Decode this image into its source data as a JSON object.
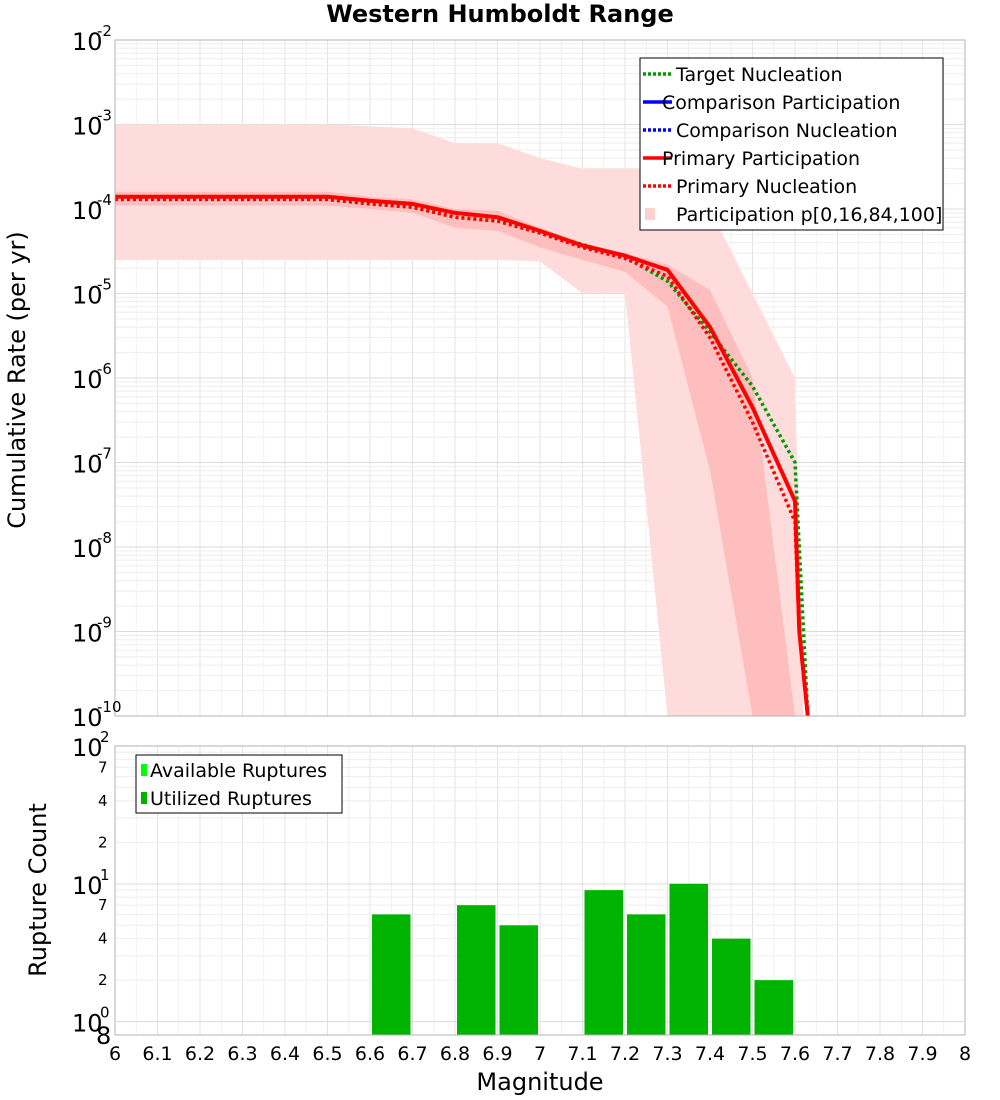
{
  "chart_data": [
    {
      "type": "line",
      "title": "Western Humboldt Range",
      "xlabel": "",
      "ylabel": "Cumulative Rate (per yr)",
      "xlim": [
        6,
        8
      ],
      "ylim": [
        1e-10,
        0.01
      ],
      "yscale": "log",
      "grid": true,
      "legend_position": "top-right",
      "y_ticks": [
        {
          "base": "10",
          "exp": "-2",
          "value": 0.01
        },
        {
          "base": "10",
          "exp": "-3",
          "value": 0.001
        },
        {
          "base": "10",
          "exp": "-4",
          "value": 0.0001
        },
        {
          "base": "10",
          "exp": "-5",
          "value": 1e-05
        },
        {
          "base": "10",
          "exp": "-6",
          "value": 1e-06
        },
        {
          "base": "10",
          "exp": "-7",
          "value": 1e-07
        },
        {
          "base": "10",
          "exp": "-8",
          "value": 1e-08
        },
        {
          "base": "10",
          "exp": "-9",
          "value": 1e-09
        },
        {
          "base": "10",
          "exp": "-10",
          "value": 1e-10
        }
      ],
      "bands": [
        {
          "name": "Participation p[0,16,84,100]",
          "kind": "outer",
          "color": "#ffdcdc",
          "x": [
            6.0,
            6.1,
            6.2,
            6.3,
            6.4,
            6.5,
            6.6,
            6.7,
            6.8,
            6.9,
            7.0,
            7.1,
            7.2,
            7.3,
            7.4,
            7.5,
            7.6,
            7.62
          ],
          "lower": [
            2.5e-05,
            2.5e-05,
            2.5e-05,
            2.5e-05,
            2.5e-05,
            2.5e-05,
            2.5e-05,
            2.5e-05,
            2.5e-05,
            2.5e-05,
            2.4e-05,
            1e-05,
            1e-05,
            1e-10,
            1e-10,
            1e-10,
            1e-10,
            1e-10
          ],
          "upper": [
            0.001,
            0.001,
            0.001,
            0.001,
            0.001,
            0.001,
            0.00095,
            0.0009,
            0.0006,
            0.0006,
            0.0004,
            0.0003,
            0.0003,
            0.0003,
            0.0001,
            1e-05,
            1e-06,
            1e-10
          ]
        },
        {
          "name": "Participation p[0,16,84,100]",
          "kind": "inner",
          "color": "#ffbebe",
          "x": [
            6.0,
            6.1,
            6.2,
            6.3,
            6.4,
            6.5,
            6.6,
            6.7,
            6.8,
            6.9,
            7.0,
            7.1,
            7.2,
            7.3,
            7.4,
            7.5,
            7.6
          ],
          "lower": [
            0.00011,
            0.00011,
            0.00011,
            0.00011,
            0.00011,
            0.00011,
            0.0001,
            9e-05,
            6e-05,
            5.5e-05,
            3.5e-05,
            2.5e-05,
            1.8e-05,
            7e-06,
            8e-08,
            1e-10,
            1e-10
          ],
          "upper": [
            0.00016,
            0.00016,
            0.00016,
            0.00016,
            0.00016,
            0.00016,
            0.00014,
            0.00013,
            0.0001,
            9.5e-05,
            6e-05,
            4e-05,
            3e-05,
            2.2e-05,
            1.1e-05,
            1e-06,
            1e-10
          ]
        }
      ],
      "series": [
        {
          "name": "Target Nucleation",
          "color": "#009900",
          "dash": "dotted",
          "x": [
            6.0,
            6.1,
            6.2,
            6.3,
            6.4,
            6.5,
            6.6,
            6.7,
            6.8,
            6.9,
            7.0,
            7.1,
            7.2,
            7.3,
            7.4,
            7.5,
            7.6,
            7.62,
            7.63
          ],
          "y": [
            0.00013,
            0.00013,
            0.00013,
            0.00013,
            0.00013,
            0.00013,
            0.000115,
            0.000105,
            8e-05,
            7.2e-05,
            5.2e-05,
            3.8e-05,
            2.7e-05,
            1.4e-05,
            3.5e-06,
            8e-07,
            1e-07,
            1e-09,
            1e-10
          ]
        },
        {
          "name": "Comparison Participation",
          "color": "#0000ff",
          "dash": "solid",
          "x": [],
          "y": []
        },
        {
          "name": "Comparison Nucleation",
          "color": "#0000ff",
          "dash": "dotted",
          "x": [],
          "y": []
        },
        {
          "name": "Primary Participation",
          "color": "#ff0000",
          "dash": "solid",
          "x": [
            6.0,
            6.1,
            6.2,
            6.3,
            6.4,
            6.5,
            6.6,
            6.7,
            6.8,
            6.9,
            7.0,
            7.1,
            7.2,
            7.3,
            7.4,
            7.5,
            7.6,
            7.61,
            7.63
          ],
          "y": [
            0.00014,
            0.00014,
            0.00014,
            0.00014,
            0.00014,
            0.00014,
            0.000125,
            0.000115,
            9e-05,
            8e-05,
            5.5e-05,
            3.7e-05,
            2.8e-05,
            1.9e-05,
            4e-06,
            4.5e-07,
            3.5e-08,
            1e-09,
            1e-10
          ]
        },
        {
          "name": "Primary Nucleation",
          "color": "#ff0000",
          "dash": "dotted",
          "x": [
            6.0,
            6.1,
            6.2,
            6.3,
            6.4,
            6.5,
            6.6,
            6.7,
            6.8,
            6.9,
            7.0,
            7.1,
            7.2,
            7.3,
            7.4,
            7.5,
            7.6,
            7.61,
            7.63
          ],
          "y": [
            0.00013,
            0.00013,
            0.00013,
            0.00013,
            0.00013,
            0.00013,
            0.000115,
            0.000105,
            8e-05,
            7.2e-05,
            5.2e-05,
            3.5e-05,
            2.6e-05,
            1.6e-05,
            3e-06,
            3e-07,
            2e-08,
            1e-09,
            1e-10
          ]
        }
      ],
      "legend": [
        {
          "label": "Target Nucleation",
          "color": "#009900",
          "style": "dotted"
        },
        {
          "label": "Comparison Participation",
          "color": "#0000ff",
          "style": "solid"
        },
        {
          "label": "Comparison Nucleation",
          "color": "#0000ff",
          "style": "dotted"
        },
        {
          "label": "Primary Participation",
          "color": "#ff0000",
          "style": "solid"
        },
        {
          "label": "Primary Nucleation",
          "color": "#ff0000",
          "style": "dotted"
        },
        {
          "label": "Participation p[0,16,84,100]",
          "color": "#ffd0d0",
          "style": "patch"
        }
      ]
    },
    {
      "type": "bar",
      "title": "",
      "xlabel": "Magnitude",
      "ylabel": "Rupture Count",
      "xlim": [
        6,
        8
      ],
      "ylim": [
        0.8,
        100
      ],
      "yscale": "log",
      "grid": true,
      "legend_position": "top-left",
      "x_ticks": [
        "6",
        "6.1",
        "6.2",
        "6.3",
        "6.4",
        "6.5",
        "6.6",
        "6.7",
        "6.8",
        "6.9",
        "7",
        "7.1",
        "7.2",
        "7.3",
        "7.4",
        "7.5",
        "7.6",
        "7.7",
        "7.8",
        "7.9",
        "8"
      ],
      "y_major_ticks": [
        {
          "base": "10",
          "exp": "2",
          "value": 100
        },
        {
          "base": "10",
          "exp": "1",
          "value": 10
        },
        {
          "base": "10",
          "exp": "0",
          "value": 1
        }
      ],
      "y_bottom_label": "8",
      "y_minor_ticks": [
        {
          "label": "7",
          "value": 70
        },
        {
          "label": "4",
          "value": 40
        },
        {
          "label": "2",
          "value": 20
        },
        {
          "label": "7",
          "value": 7
        },
        {
          "label": "4",
          "value": 4
        },
        {
          "label": "2",
          "value": 2
        }
      ],
      "bin_width": 0.1,
      "categories": [
        6.65,
        6.85,
        6.95,
        7.15,
        7.25,
        7.35,
        7.45,
        7.55
      ],
      "series": [
        {
          "name": "Available Ruptures",
          "color": "#00ff00",
          "values": [
            6,
            7,
            5,
            9,
            6,
            10,
            4,
            2
          ]
        },
        {
          "name": "Utilized Ruptures",
          "color": "#00b300",
          "values": [
            6,
            7,
            5,
            9,
            6,
            10,
            4,
            2
          ]
        }
      ],
      "legend": [
        {
          "label": "Available Ruptures",
          "color": "#00ff00"
        },
        {
          "label": "Utilized Ruptures",
          "color": "#00b300"
        }
      ]
    }
  ]
}
